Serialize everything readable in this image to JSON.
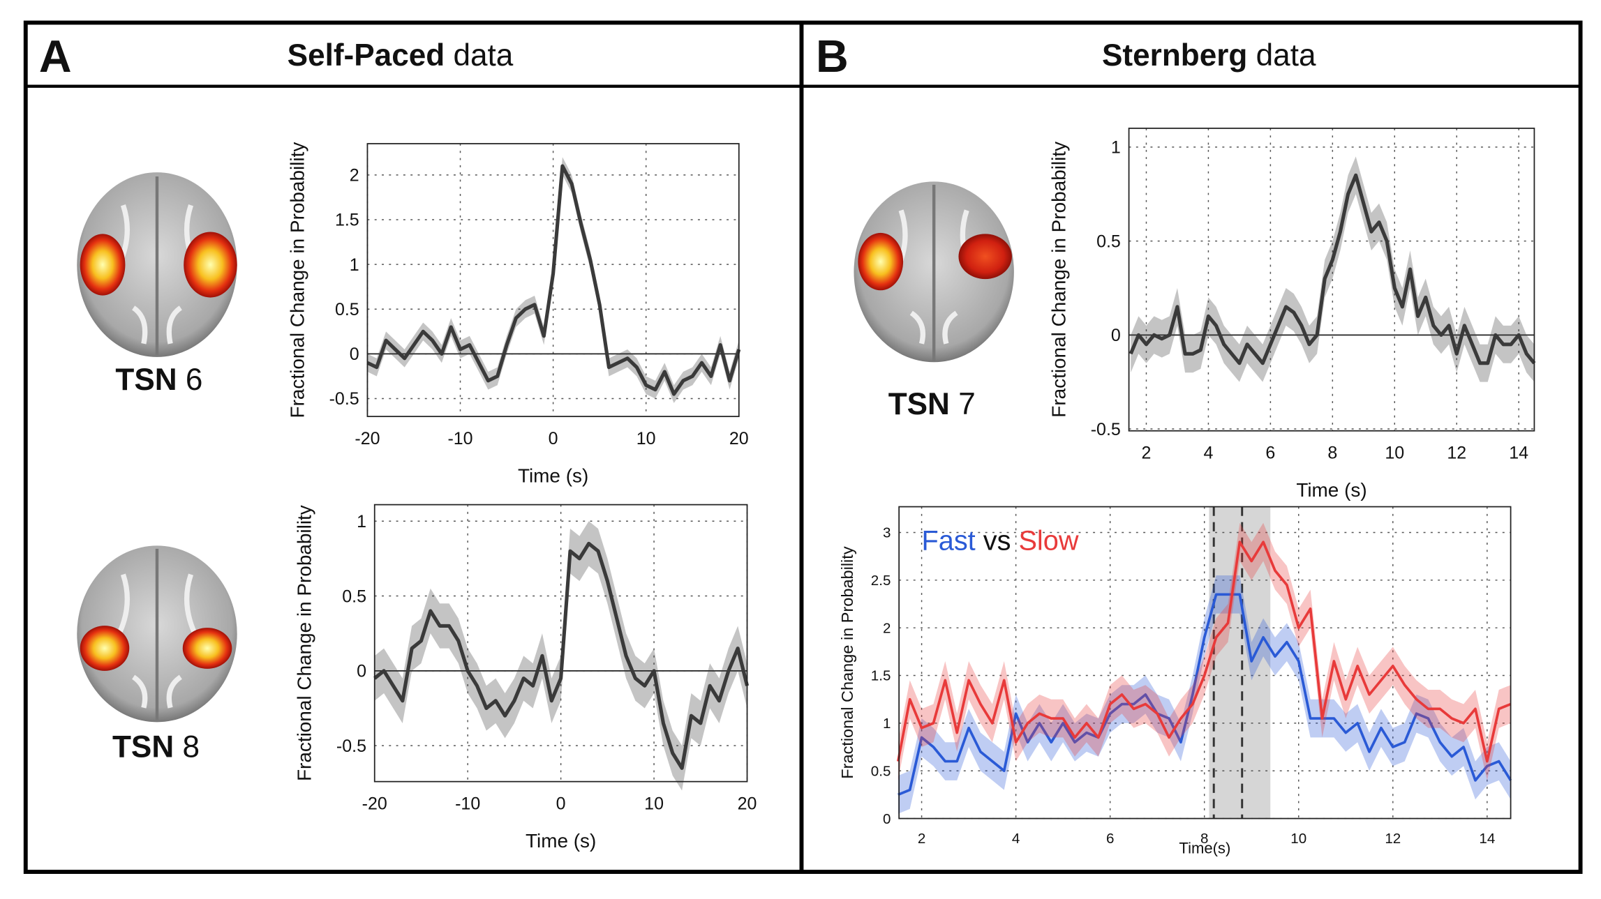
{
  "panels": [
    {
      "letter": "A",
      "title_bold": "Self-Paced",
      "title_rest": "data",
      "networks": [
        {
          "name": "TSN",
          "number": "6"
        },
        {
          "name": "TSN",
          "number": "8"
        }
      ]
    },
    {
      "letter": "B",
      "title_bold": "Sternberg",
      "title_rest": "data",
      "networks": [
        {
          "name": "TSN",
          "number": "7"
        }
      ]
    }
  ],
  "chart_data": [
    {
      "type": "line",
      "xlabel": "Time (s)",
      "ylabel": "Fractional Change in Probability",
      "grid": true,
      "xlim": [
        -20,
        20
      ],
      "xticks": [
        -20,
        -10,
        0,
        10,
        20
      ],
      "ylim": [
        -0.7,
        2.35
      ],
      "yticks": [
        -0.5,
        0,
        0.5,
        1,
        1.5,
        2
      ],
      "x": [
        -20,
        -19,
        -18,
        -17,
        -16,
        -15,
        -14,
        -13,
        -12,
        -11,
        -10,
        -9,
        -8,
        -7,
        -6,
        -5,
        -4,
        -3,
        -2,
        -1,
        0,
        1,
        2,
        3,
        4,
        5,
        6,
        7,
        8,
        9,
        10,
        11,
        12,
        13,
        14,
        15,
        16,
        17,
        18,
        19,
        20
      ],
      "series": [
        {
          "color": "#3a3a3a",
          "error": 0.1,
          "values": [
            -0.1,
            -0.15,
            0.15,
            0.05,
            -0.05,
            0.1,
            0.25,
            0.15,
            0.0,
            0.3,
            0.05,
            0.1,
            -0.1,
            -0.3,
            -0.25,
            0.1,
            0.4,
            0.5,
            0.55,
            0.2,
            0.9,
            2.1,
            1.9,
            1.45,
            1.05,
            0.55,
            -0.15,
            -0.1,
            -0.05,
            -0.15,
            -0.35,
            -0.4,
            -0.2,
            -0.45,
            -0.3,
            -0.25,
            -0.1,
            -0.25,
            0.1,
            -0.3,
            0.05
          ]
        }
      ]
    },
    {
      "type": "line",
      "xlabel": "Time (s)",
      "ylabel": "Fractional Change in Probability",
      "grid": true,
      "xlim": [
        -20,
        20
      ],
      "xticks": [
        -20,
        -10,
        0,
        10,
        20
      ],
      "ylim": [
        -0.74,
        1.11
      ],
      "yticks": [
        -0.5,
        0,
        0.5,
        1
      ],
      "x": [
        -20,
        -19,
        -18,
        -17,
        -16,
        -15,
        -14,
        -13,
        -12,
        -11,
        -10,
        -9,
        -8,
        -7,
        -6,
        -5,
        -4,
        -3,
        -2,
        -1,
        0,
        1,
        2,
        3,
        4,
        5,
        6,
        7,
        8,
        9,
        10,
        11,
        12,
        13,
        14,
        15,
        16,
        17,
        18,
        19,
        20
      ],
      "series": [
        {
          "color": "#3a3a3a",
          "error": 0.15,
          "values": [
            -0.05,
            0.0,
            -0.1,
            -0.2,
            0.15,
            0.2,
            0.4,
            0.3,
            0.3,
            0.2,
            0.0,
            -0.1,
            -0.25,
            -0.2,
            -0.3,
            -0.2,
            -0.05,
            -0.1,
            0.1,
            -0.2,
            -0.05,
            0.8,
            0.75,
            0.85,
            0.8,
            0.6,
            0.35,
            0.1,
            -0.05,
            -0.1,
            0.0,
            -0.35,
            -0.55,
            -0.65,
            -0.3,
            -0.35,
            -0.1,
            -0.2,
            0.0,
            0.15,
            -0.1
          ]
        }
      ]
    },
    {
      "type": "line",
      "xlabel": "Time (s)",
      "ylabel": "Fractional Change in Probability",
      "grid": true,
      "xlim": [
        1.44,
        14.5
      ],
      "xticks": [
        2,
        4,
        6,
        8,
        10,
        12,
        14
      ],
      "ylim": [
        -0.51,
        1.1
      ],
      "yticks": [
        -0.5,
        0,
        0.5,
        1
      ],
      "x": [
        1.5,
        1.75,
        2,
        2.25,
        2.5,
        2.75,
        3,
        3.25,
        3.5,
        3.75,
        4,
        4.25,
        4.5,
        4.75,
        5,
        5.25,
        5.5,
        5.75,
        6,
        6.25,
        6.5,
        6.75,
        7,
        7.25,
        7.5,
        7.75,
        8,
        8.25,
        8.5,
        8.75,
        9,
        9.25,
        9.5,
        9.75,
        10,
        10.25,
        10.5,
        10.75,
        11,
        11.25,
        11.5,
        11.75,
        12,
        12.25,
        12.5,
        12.75,
        13,
        13.25,
        13.5,
        13.75,
        14,
        14.25,
        14.5
      ],
      "series": [
        {
          "color": "#3a3a3a",
          "error": 0.1,
          "values": [
            -0.1,
            0.0,
            -0.05,
            0.0,
            -0.02,
            0.0,
            0.15,
            -0.1,
            -0.1,
            -0.08,
            0.1,
            0.05,
            -0.05,
            -0.1,
            -0.15,
            -0.05,
            -0.1,
            -0.15,
            -0.05,
            0.05,
            0.15,
            0.12,
            0.05,
            -0.05,
            0.0,
            0.3,
            0.4,
            0.55,
            0.75,
            0.85,
            0.7,
            0.55,
            0.6,
            0.5,
            0.25,
            0.15,
            0.35,
            0.1,
            0.2,
            0.05,
            0.0,
            0.05,
            -0.1,
            0.05,
            -0.05,
            -0.15,
            -0.15,
            0.0,
            -0.05,
            -0.05,
            0.0,
            -0.1,
            -0.15
          ]
        }
      ]
    },
    {
      "type": "line",
      "xlabel": "Time(s)",
      "ylabel": "Fractional Change in Probability",
      "grid": true,
      "legend_separator": "vs",
      "xlim": [
        1.52,
        14.5
      ],
      "xticks": [
        2,
        4,
        6,
        8,
        10,
        12,
        14
      ],
      "ylim": [
        0,
        3.27
      ],
      "yticks": [
        0,
        0.5,
        1,
        1.5,
        2,
        2.5,
        3
      ],
      "vlines": [
        8.2,
        8.8
      ],
      "shade": [
        8.1,
        9.4
      ],
      "x": [
        1.5,
        1.75,
        2,
        2.25,
        2.5,
        2.75,
        3,
        3.25,
        3.5,
        3.75,
        4,
        4.25,
        4.5,
        4.75,
        5,
        5.25,
        5.5,
        5.75,
        6,
        6.25,
        6.5,
        6.75,
        7,
        7.25,
        7.5,
        7.75,
        8,
        8.25,
        8.5,
        8.75,
        9,
        9.25,
        9.5,
        9.75,
        10,
        10.25,
        10.5,
        10.75,
        11,
        11.25,
        11.5,
        11.75,
        12,
        12.25,
        12.5,
        12.75,
        13,
        13.25,
        13.5,
        13.75,
        14,
        14.25,
        14.5
      ],
      "series": [
        {
          "name": "Fast",
          "color": "#2a5ad6",
          "error": 0.2,
          "values": [
            0.25,
            0.3,
            0.85,
            0.75,
            0.6,
            0.6,
            0.95,
            0.7,
            0.6,
            0.5,
            1.1,
            0.8,
            1.0,
            0.8,
            1.0,
            0.8,
            0.9,
            0.85,
            1.1,
            1.2,
            1.2,
            1.3,
            1.1,
            1.05,
            0.8,
            1.3,
            1.9,
            2.35,
            2.35,
            2.35,
            1.65,
            1.9,
            1.7,
            1.85,
            1.65,
            1.05,
            1.05,
            1.05,
            0.9,
            1.0,
            0.7,
            0.95,
            0.75,
            0.8,
            1.1,
            1.05,
            0.8,
            0.65,
            0.75,
            0.4,
            0.55,
            0.6,
            0.4
          ]
        },
        {
          "name": "Slow",
          "color": "#e83a3a",
          "error": 0.2,
          "values": [
            0.6,
            1.25,
            0.95,
            1.0,
            1.45,
            0.9,
            1.45,
            1.2,
            1.0,
            1.45,
            0.8,
            1.0,
            1.1,
            1.05,
            1.05,
            0.85,
            1.0,
            0.85,
            1.2,
            1.3,
            1.15,
            1.2,
            1.1,
            0.85,
            1.05,
            1.2,
            1.5,
            1.9,
            2.05,
            2.9,
            2.7,
            2.9,
            2.6,
            2.45,
            2.0,
            2.2,
            1.05,
            1.65,
            1.25,
            1.6,
            1.3,
            1.45,
            1.6,
            1.4,
            1.25,
            1.15,
            1.15,
            1.05,
            1.0,
            1.15,
            0.6,
            1.15,
            1.2
          ]
        }
      ]
    }
  ]
}
